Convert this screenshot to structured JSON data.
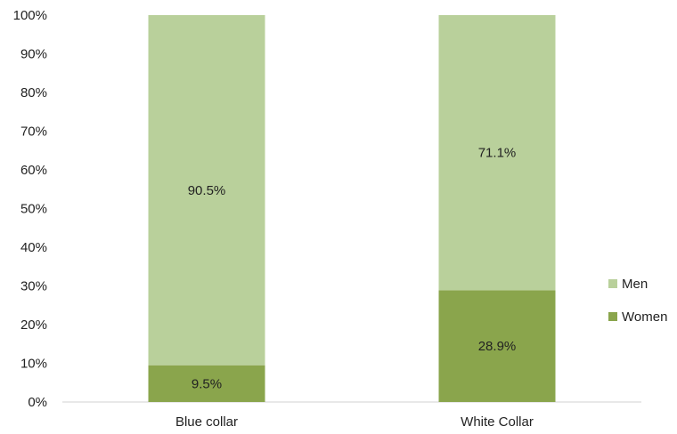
{
  "chart_data": {
    "type": "bar",
    "stacked": true,
    "categories": [
      "Blue collar",
      "White Collar"
    ],
    "series": [
      {
        "name": "Women",
        "values": [
          9.5,
          28.9
        ],
        "labels": [
          "9.5%",
          "28.9%"
        ],
        "color": "#8aa54c"
      },
      {
        "name": "Men",
        "values": [
          90.5,
          71.1
        ],
        "labels": [
          "90.5%",
          "71.1%"
        ],
        "color": "#b9d09b"
      }
    ],
    "ylim": [
      0,
      100
    ],
    "yticks": [
      "0%",
      "10%",
      "20%",
      "30%",
      "40%",
      "50%",
      "60%",
      "70%",
      "80%",
      "90%",
      "100%"
    ],
    "grid": false,
    "legend": {
      "position": "right",
      "entries": [
        {
          "name": "Men",
          "color": "#b9d09b"
        },
        {
          "name": "Women",
          "color": "#8aa54c"
        }
      ]
    }
  }
}
